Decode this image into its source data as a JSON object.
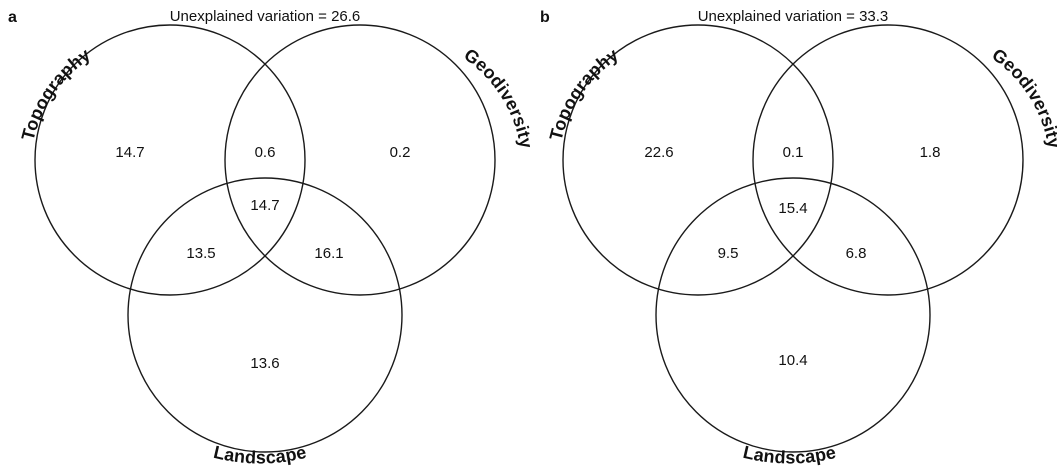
{
  "panels": [
    {
      "label": "a",
      "unexplained": "Unexplained variation = 26.6",
      "sets": {
        "topography": "Topography",
        "geodiversity": "Geodiversity",
        "landscape": "Landscape"
      },
      "values": {
        "topography_only": "14.7",
        "topo_geo": "0.6",
        "geodiversity_only": "0.2",
        "all_three": "14.7",
        "topo_land": "13.5",
        "geo_land": "16.1",
        "landscape_only": "13.6"
      }
    },
    {
      "label": "b",
      "unexplained": "Unexplained variation = 33.3",
      "sets": {
        "topography": "Topography",
        "geodiversity": "Geodiversity",
        "landscape": "Landscape"
      },
      "values": {
        "topography_only": "22.6",
        "topo_geo": "0.1",
        "geodiversity_only": "1.8",
        "all_three": "15.4",
        "topo_land": "9.5",
        "geo_land": "6.8",
        "landscape_only": "10.4"
      }
    }
  ]
}
